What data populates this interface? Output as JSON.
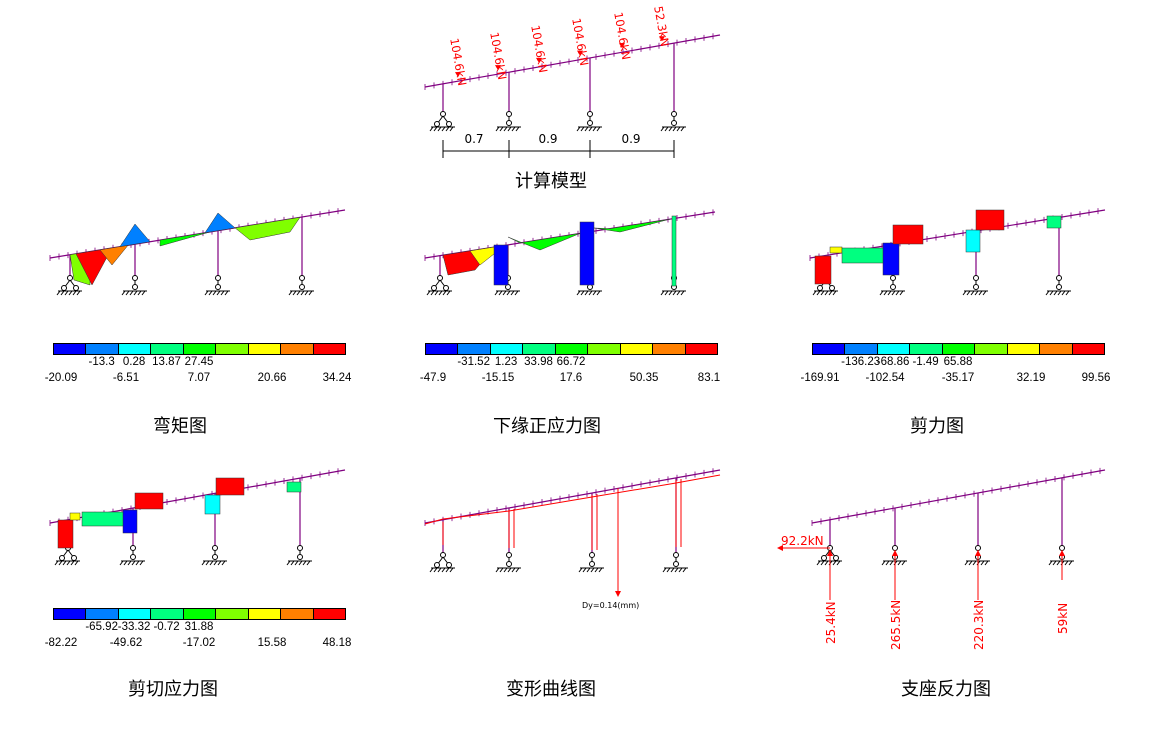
{
  "panels": {
    "model": {
      "title": "计算模型",
      "loads": [
        "104.6kN",
        "104.6kN",
        "104.6kN",
        "104.6kN",
        "104.6kN",
        "52.3kN"
      ],
      "spans": [
        "0.7",
        "0.9",
        "0.9"
      ]
    },
    "moment": {
      "title": "弯矩图",
      "legend_upper": [
        "-13.3",
        "0.28",
        "13.87",
        "27.45"
      ],
      "legend_lower": [
        "-20.09",
        "-6.51",
        "7.07",
        "20.66",
        "34.24"
      ]
    },
    "bottom_stress": {
      "title": "下缘正应力图",
      "legend_upper": [
        "-31.52",
        "1.23",
        "33.98",
        "66.72"
      ],
      "legend_lower": [
        "-47.9",
        "-15.15",
        "17.6",
        "50.35",
        "83.1"
      ]
    },
    "shear": {
      "title": "剪力图",
      "legend_upper": [
        "-136.23",
        "-68.86",
        "-1.49",
        "65.88"
      ],
      "legend_lower": [
        "-169.91",
        "-102.54",
        "-35.17",
        "32.19",
        "99.56"
      ]
    },
    "shear_stress": {
      "title": "剪切应力图",
      "legend_upper": [
        "-65.92",
        "-33.32",
        "-0.72",
        "31.88"
      ],
      "legend_lower": [
        "-82.22",
        "-49.62",
        "-17.02",
        "15.58",
        "48.18"
      ]
    },
    "deformation": {
      "title": "变形曲线图",
      "max_label": "Dy=0.14(mm)"
    },
    "reactions": {
      "title": "支座反力图",
      "horizontal": "92.2kN",
      "vertical": [
        "25.4kN",
        "265.5kN",
        "220.3kN",
        "59kN"
      ]
    }
  },
  "colors": {
    "scale": [
      "#0000ff",
      "#0080ff",
      "#00ffff",
      "#00ff80",
      "#00ff00",
      "#80ff00",
      "#ffff00",
      "#ff8000",
      "#ff0000"
    ],
    "member": "#800080",
    "load": "#ff0000"
  }
}
